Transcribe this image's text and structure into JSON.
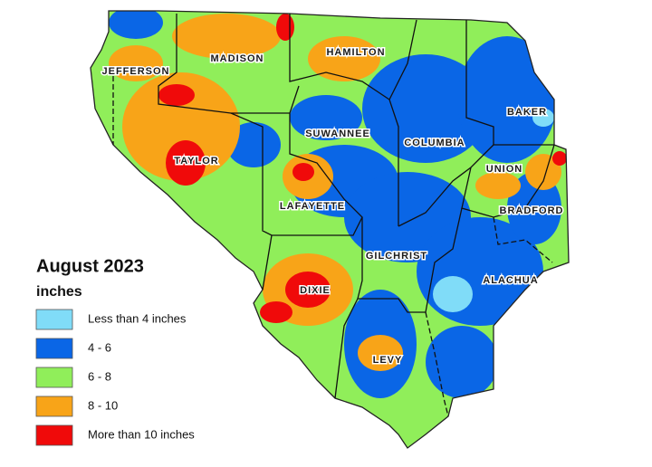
{
  "legend": {
    "title": "August 2023",
    "unit": "inches",
    "items": [
      {
        "label": "Less than 4 inches",
        "color": "#80dcf8"
      },
      {
        "label": "4 - 6",
        "color": "#0a66e6"
      },
      {
        "label": "6 - 8",
        "color": "#90ee5a"
      },
      {
        "label": "8 - 10",
        "color": "#f8a418"
      },
      {
        "label": "More than 10 inches",
        "color": "#f00a0a"
      }
    ]
  },
  "counties": [
    {
      "label": "JEFFERSON"
    },
    {
      "label": "MADISON"
    },
    {
      "label": "HAMILTON"
    },
    {
      "label": "BAKER"
    },
    {
      "label": "SUWANNEE"
    },
    {
      "label": "COLUMBIA"
    },
    {
      "label": "TAYLOR"
    },
    {
      "label": "UNION"
    },
    {
      "label": "LAFAYETTE"
    },
    {
      "label": "BRADFORD"
    },
    {
      "label": "GILCHRIST"
    },
    {
      "label": "DIXIE"
    },
    {
      "label": "ALACHUA"
    },
    {
      "label": "LEVY"
    }
  ]
}
